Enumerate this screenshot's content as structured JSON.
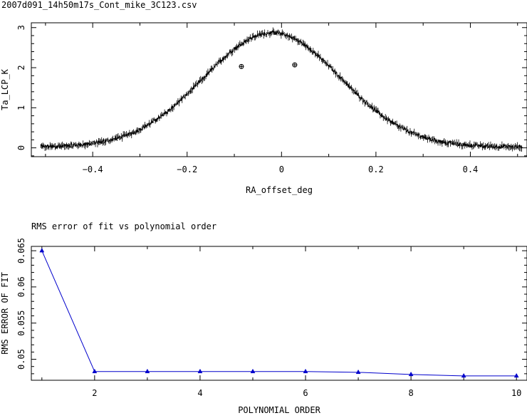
{
  "chart_data": [
    {
      "type": "scatter",
      "title": "2007d091_14h50m17s_Cont_mike_3C123.csv",
      "xlabel": "RA_offset_deg",
      "ylabel": "Ta_LCP_K",
      "xlim": [
        -0.53,
        0.52
      ],
      "ylim": [
        -0.22,
        3.12
      ],
      "xticks": [
        -0.4,
        -0.2,
        0,
        0.2,
        0.4
      ],
      "xtick_labels": [
        "−0.4",
        "−0.2",
        "0",
        "0.2",
        "0.4"
      ],
      "yticks": [
        0,
        1,
        2,
        3
      ],
      "ytick_labels": [
        "0",
        "1",
        "2",
        "3"
      ],
      "grid": false,
      "profile": {
        "x_start": -0.51,
        "x_end": 0.51,
        "peak": 2.85,
        "center": -0.02,
        "sigma": 0.145,
        "baseline": 0.02,
        "noise": 0.05
      },
      "markers": [
        {
          "x": -0.085,
          "y": 2.03
        },
        {
          "x": 0.028,
          "y": 2.07
        }
      ],
      "color": "#000000"
    },
    {
      "type": "line",
      "title": "RMS error of fit vs polynomial order",
      "xlabel": "POLYNOMIAL ORDER",
      "ylabel": "RMS ERROR OF FIT",
      "x": [
        1,
        2,
        3,
        4,
        5,
        6,
        7,
        8,
        9,
        10
      ],
      "values": [
        0.065,
        0.0483,
        0.0483,
        0.0483,
        0.0483,
        0.0483,
        0.0482,
        0.0479,
        0.0477,
        0.0477
      ],
      "xlim": [
        0.8,
        10.2
      ],
      "ylim": [
        0.0471,
        0.0656
      ],
      "xticks": [
        2,
        4,
        6,
        8,
        10
      ],
      "xtick_labels": [
        "2",
        "4",
        "6",
        "8",
        "10"
      ],
      "yticks": [
        0.05,
        0.055,
        0.06,
        0.065
      ],
      "ytick_labels": [
        "0.05",
        "0.055",
        "0.06",
        "0.065"
      ],
      "grid": false,
      "color": "#0000cc",
      "marker": "triangle"
    }
  ]
}
